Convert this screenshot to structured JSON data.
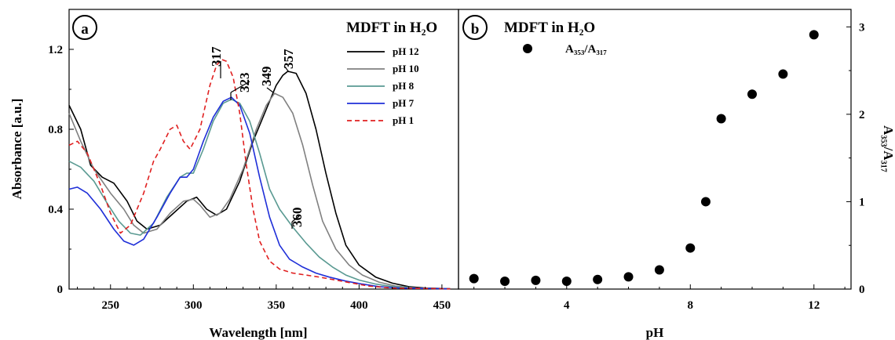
{
  "chart_data": [
    {
      "panel": "a",
      "type": "line",
      "title": "MDFT in H₂O",
      "xlabel": "Wavelength [nm]",
      "ylabel": "Absorbance [a.u.]",
      "xlim": [
        225,
        460
      ],
      "ylim": [
        0,
        1.4
      ],
      "xticks": [
        "250",
        "300",
        "350",
        "400",
        "450"
      ],
      "yticks": [
        "0",
        "0.4",
        "0.8",
        "1.2"
      ],
      "grid": false,
      "legend_position": "top-right",
      "series": [
        {
          "name": "pH 12",
          "color": "#000000",
          "dash": "solid",
          "points": [
            [
              225,
              0.92
            ],
            [
              232,
              0.8
            ],
            [
              238,
              0.62
            ],
            [
              245,
              0.56
            ],
            [
              252,
              0.53
            ],
            [
              260,
              0.44
            ],
            [
              266,
              0.34
            ],
            [
              272,
              0.3
            ],
            [
              280,
              0.32
            ],
            [
              288,
              0.38
            ],
            [
              296,
              0.44
            ],
            [
              302,
              0.46
            ],
            [
              308,
              0.4
            ],
            [
              314,
              0.37
            ],
            [
              320,
              0.4
            ],
            [
              328,
              0.54
            ],
            [
              336,
              0.74
            ],
            [
              344,
              0.9
            ],
            [
              350,
              1.02
            ],
            [
              354,
              1.07
            ],
            [
              357,
              1.09
            ],
            [
              362,
              1.08
            ],
            [
              368,
              0.98
            ],
            [
              374,
              0.8
            ],
            [
              380,
              0.58
            ],
            [
              386,
              0.38
            ],
            [
              392,
              0.22
            ],
            [
              400,
              0.12
            ],
            [
              410,
              0.06
            ],
            [
              420,
              0.03
            ],
            [
              430,
              0.012
            ],
            [
              440,
              0.005
            ],
            [
              455,
              0.002
            ]
          ]
        },
        {
          "name": "pH 10",
          "color": "#808080",
          "dash": "solid",
          "points": [
            [
              225,
              0.88
            ],
            [
              232,
              0.74
            ],
            [
              240,
              0.6
            ],
            [
              250,
              0.48
            ],
            [
              258,
              0.4
            ],
            [
              264,
              0.32
            ],
            [
              270,
              0.28
            ],
            [
              278,
              0.3
            ],
            [
              286,
              0.38
            ],
            [
              294,
              0.44
            ],
            [
              300,
              0.45
            ],
            [
              304,
              0.42
            ],
            [
              310,
              0.36
            ],
            [
              316,
              0.38
            ],
            [
              322,
              0.45
            ],
            [
              330,
              0.6
            ],
            [
              338,
              0.8
            ],
            [
              344,
              0.92
            ],
            [
              349,
              0.98
            ],
            [
              354,
              0.96
            ],
            [
              360,
              0.88
            ],
            [
              366,
              0.72
            ],
            [
              372,
              0.52
            ],
            [
              378,
              0.34
            ],
            [
              386,
              0.2
            ],
            [
              394,
              0.12
            ],
            [
              402,
              0.07
            ],
            [
              412,
              0.035
            ],
            [
              422,
              0.015
            ],
            [
              435,
              0.005
            ],
            [
              455,
              0.002
            ]
          ]
        },
        {
          "name": "pH 8",
          "color": "#5a9a92",
          "dash": "solid",
          "points": [
            [
              225,
              0.64
            ],
            [
              232,
              0.61
            ],
            [
              240,
              0.54
            ],
            [
              248,
              0.43
            ],
            [
              255,
              0.34
            ],
            [
              262,
              0.28
            ],
            [
              268,
              0.27
            ],
            [
              276,
              0.33
            ],
            [
              284,
              0.46
            ],
            [
              292,
              0.56
            ],
            [
              296,
              0.58
            ],
            [
              300,
              0.58
            ],
            [
              306,
              0.7
            ],
            [
              312,
              0.84
            ],
            [
              318,
              0.93
            ],
            [
              323,
              0.95
            ],
            [
              328,
              0.93
            ],
            [
              334,
              0.84
            ],
            [
              340,
              0.68
            ],
            [
              346,
              0.5
            ],
            [
              352,
              0.4
            ],
            [
              360,
              0.31
            ],
            [
              368,
              0.23
            ],
            [
              376,
              0.16
            ],
            [
              384,
              0.11
            ],
            [
              392,
              0.07
            ],
            [
              400,
              0.045
            ],
            [
              410,
              0.025
            ],
            [
              420,
              0.012
            ],
            [
              435,
              0.004
            ],
            [
              455,
              0.001
            ]
          ]
        },
        {
          "name": "pH 7",
          "color": "#1f2fd8",
          "dash": "solid",
          "points": [
            [
              225,
              0.5
            ],
            [
              230,
              0.51
            ],
            [
              236,
              0.48
            ],
            [
              244,
              0.4
            ],
            [
              252,
              0.3
            ],
            [
              258,
              0.24
            ],
            [
              264,
              0.22
            ],
            [
              270,
              0.25
            ],
            [
              278,
              0.36
            ],
            [
              286,
              0.48
            ],
            [
              292,
              0.56
            ],
            [
              296,
              0.56
            ],
            [
              300,
              0.6
            ],
            [
              306,
              0.74
            ],
            [
              312,
              0.86
            ],
            [
              318,
              0.94
            ],
            [
              323,
              0.96
            ],
            [
              328,
              0.92
            ],
            [
              334,
              0.78
            ],
            [
              340,
              0.56
            ],
            [
              346,
              0.36
            ],
            [
              352,
              0.22
            ],
            [
              358,
              0.15
            ],
            [
              366,
              0.11
            ],
            [
              374,
              0.08
            ],
            [
              382,
              0.06
            ],
            [
              392,
              0.04
            ],
            [
              402,
              0.025
            ],
            [
              412,
              0.012
            ],
            [
              425,
              0.005
            ],
            [
              455,
              0.001
            ]
          ]
        },
        {
          "name": "pH 1",
          "color": "#e02020",
          "dash": "dashed",
          "points": [
            [
              225,
              0.72
            ],
            [
              230,
              0.74
            ],
            [
              236,
              0.68
            ],
            [
              244,
              0.52
            ],
            [
              250,
              0.38
            ],
            [
              256,
              0.28
            ],
            [
              262,
              0.32
            ],
            [
              270,
              0.48
            ],
            [
              276,
              0.64
            ],
            [
              280,
              0.7
            ],
            [
              286,
              0.8
            ],
            [
              290,
              0.82
            ],
            [
              294,
              0.74
            ],
            [
              298,
              0.7
            ],
            [
              304,
              0.8
            ],
            [
              310,
              1.02
            ],
            [
              314,
              1.12
            ],
            [
              317,
              1.15
            ],
            [
              320,
              1.14
            ],
            [
              324,
              1.06
            ],
            [
              328,
              0.88
            ],
            [
              332,
              0.62
            ],
            [
              336,
              0.4
            ],
            [
              340,
              0.24
            ],
            [
              346,
              0.14
            ],
            [
              352,
              0.1
            ],
            [
              360,
              0.08
            ],
            [
              368,
              0.07
            ],
            [
              376,
              0.06
            ],
            [
              386,
              0.045
            ],
            [
              396,
              0.03
            ],
            [
              406,
              0.015
            ],
            [
              420,
              0.005
            ],
            [
              455,
              0.001
            ]
          ]
        }
      ],
      "annotations": [
        "317",
        "323",
        "349",
        "357",
        "360"
      ]
    },
    {
      "panel": "b",
      "type": "scatter",
      "title": "MDFT in H₂O",
      "xlabel": "pH",
      "ylabel": "A₃₅₃/A₃₁₇",
      "xlim": [
        0.5,
        13.2
      ],
      "ylim": [
        0,
        3.2
      ],
      "xticks": [
        "4",
        "8",
        "12"
      ],
      "yticks": [
        "0",
        "1",
        "2",
        "3"
      ],
      "grid": false,
      "legend_position": "top-left",
      "series": [
        {
          "name": "A₃₅₃/A₃₁₇",
          "x": [
            1,
            2,
            3,
            4,
            5,
            6,
            7,
            8,
            8.5,
            9,
            10,
            11,
            12
          ],
          "y": [
            0.12,
            0.09,
            0.1,
            0.09,
            0.11,
            0.14,
            0.22,
            0.47,
            1.0,
            1.95,
            2.23,
            2.46,
            2.91
          ]
        }
      ]
    }
  ]
}
